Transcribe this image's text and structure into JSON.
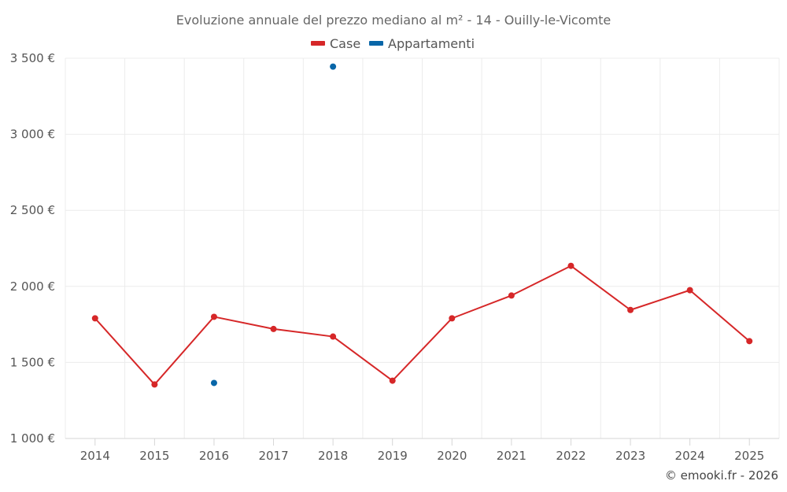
{
  "chart_data": {
    "type": "line",
    "title": "Evoluzione annuale del prezzo mediano al m² - 14 - Ouilly-le-Vicomte",
    "credit": "© emooki.fr - 2026",
    "categories": [
      "2014",
      "2015",
      "2016",
      "2017",
      "2018",
      "2019",
      "2020",
      "2021",
      "2022",
      "2023",
      "2024",
      "2025"
    ],
    "y_ticks": [
      1000,
      1500,
      2000,
      2500,
      3000,
      3500
    ],
    "y_tick_labels": [
      "1 000 €",
      "1 500 €",
      "2 000 €",
      "2 500 €",
      "3 000 €",
      "3 500 €"
    ],
    "ylim": [
      1000,
      3500
    ],
    "grid": true,
    "legend_position": "top-center",
    "series": [
      {
        "name": "Case",
        "color": "#d62728",
        "values": [
          1790,
          1355,
          1800,
          1720,
          1670,
          1380,
          1790,
          1940,
          2135,
          1845,
          1975,
          1640
        ]
      },
      {
        "name": "Appartamenti",
        "color": "#0866a8",
        "values": [
          null,
          null,
          1365,
          null,
          3445,
          null,
          null,
          null,
          null,
          null,
          null,
          null
        ]
      }
    ]
  }
}
